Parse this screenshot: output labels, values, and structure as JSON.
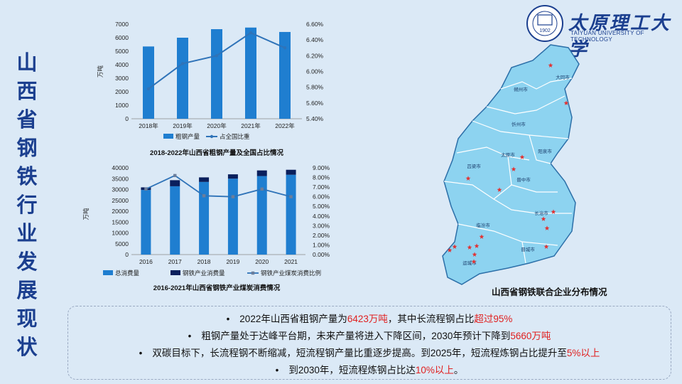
{
  "title": "山西省钢铁行业发展现状",
  "logo": {
    "cn": "太原理工大学",
    "en": "TAIYUAN UNIVERSITY OF TECHNOLOGY",
    "seal_year": "1902"
  },
  "colors": {
    "bar": "#1f7ed0",
    "bar_dark": "#0a1f5c",
    "line": "#2f73b8",
    "accent_red": "#e02020",
    "map_fill": "#8dd3f0",
    "map_border": "#ffffff",
    "map_outline": "#2c6fa8",
    "star": "#e23030"
  },
  "chart1": {
    "title": "2018-2022年山西省粗钢产量及全国占比情况",
    "y_unit": "万吨",
    "legend": [
      "粗钢产量",
      "占全国比重"
    ]
  },
  "chart2": {
    "title": "2016-2021年山西省钢铁产业煤炭消费情况",
    "y_unit": "万吨",
    "legend": [
      "总消费量",
      "钢铁产业消费量",
      "钢铁产业煤炭消费比例"
    ]
  },
  "chart_data": [
    {
      "type": "bar",
      "title": "2018-2022年山西省粗钢产量及全国占比情况",
      "categories": [
        "2018年",
        "2019年",
        "2020年",
        "2021年",
        "2022年"
      ],
      "series": [
        {
          "name": "粗钢产量",
          "values": [
            5350,
            6000,
            6630,
            6750,
            6423
          ],
          "axis": "left"
        },
        {
          "name": "占全国比重",
          "values": [
            5.78,
            6.1,
            6.2,
            6.49,
            6.3
          ],
          "axis": "right",
          "kind": "line"
        }
      ],
      "ylabel": "万吨",
      "ylim": [
        0,
        7000
      ],
      "yticks": [
        "0",
        "1000",
        "2000",
        "3000",
        "4000",
        "5000",
        "6000",
        "7000"
      ],
      "y2lim": [
        5.4,
        6.6
      ],
      "y2ticks": [
        "5.40%",
        "5.60%",
        "5.80%",
        "6.00%",
        "6.20%",
        "6.40%",
        "6.60%"
      ],
      "legend": "bottom"
    },
    {
      "type": "bar",
      "title": "2016-2021年山西省钢铁产业煤炭消费情况",
      "categories": [
        "2016",
        "2017",
        "2018",
        "2019",
        "2020",
        "2021"
      ],
      "series": [
        {
          "name": "总消费量",
          "values": [
            29800,
            31500,
            33500,
            35000,
            36200,
            36800
          ],
          "axis": "left"
        },
        {
          "name": "钢铁产业消费量",
          "values": [
            1200,
            2800,
            2100,
            2000,
            2600,
            2300
          ],
          "axis": "left",
          "stacked": true
        },
        {
          "name": "钢铁产业煤炭消费比例",
          "values": [
            6.8,
            8.2,
            6.1,
            6.0,
            6.8,
            6.0
          ],
          "axis": "right",
          "kind": "line"
        }
      ],
      "ylabel": "万吨",
      "ylim": [
        0,
        40000
      ],
      "yticks": [
        "0",
        "5000",
        "10000",
        "15000",
        "20000",
        "25000",
        "30000",
        "35000",
        "40000"
      ],
      "y2lim": [
        0,
        9
      ],
      "y2ticks": [
        "0.00%",
        "1.00%",
        "2.00%",
        "3.00%",
        "4.00%",
        "5.00%",
        "6.00%",
        "7.00%",
        "8.00%",
        "9.00%"
      ],
      "legend": "bottom"
    }
  ],
  "map": {
    "caption": "山西省钢铁联合企业分布情况",
    "cities": [
      "大同市",
      "朔州市",
      "忻州市",
      "太原市",
      "阳泉市",
      "吕梁市",
      "晋中市",
      "长治市",
      "临汾市",
      "晋城市",
      "运城市"
    ]
  },
  "bullets": [
    {
      "bullet": "•",
      "segments": [
        {
          "t": "2022年山西省粗钢产量为"
        },
        {
          "t": "6423万吨",
          "red": true
        },
        {
          "t": "，其中长流程钢占比"
        },
        {
          "t": "超过95%",
          "red": true
        }
      ]
    },
    {
      "bullet": "•",
      "segments": [
        {
          "t": "粗钢产量处于达峰平台期，未来产量将进入下降区间，2030年预计下降到"
        },
        {
          "t": "5660万吨",
          "red": true
        }
      ]
    },
    {
      "bullet": "•",
      "segments": [
        {
          "t": "双碳目标下，长流程钢不断缩减，短流程钢产量比重逐步提高。到2025年，短流程炼钢占比提升至"
        },
        {
          "t": "5%以上",
          "red": true
        }
      ]
    },
    {
      "bullet": "•",
      "segments": [
        {
          "t": "到2030年，短流程炼钢占比达"
        },
        {
          "t": "10%以上",
          "red": true
        },
        {
          "t": "。"
        }
      ]
    }
  ]
}
